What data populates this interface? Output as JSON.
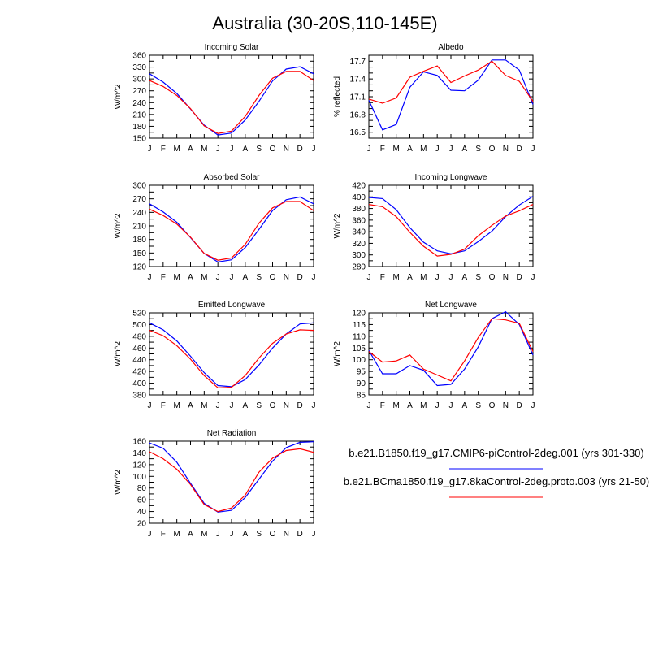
{
  "figure": {
    "title": "Australia (30-20S,110-145E)"
  },
  "legend": [
    {
      "label": "b.e21.B1850.f19_g17.CMIP6-piControl-2deg.001 (yrs 301-330)",
      "color": "#0000ff"
    },
    {
      "label": "b.e21.BCma1850.f19_g17.8kaControl-2deg.proto.003 (yrs 21-50)",
      "color": "#ff0000"
    }
  ],
  "chart_data": [
    {
      "type": "line",
      "title": "Incoming Solar",
      "ylabel": "W/m^2",
      "categories": [
        "J",
        "F",
        "M",
        "A",
        "M",
        "J",
        "J",
        "A",
        "S",
        "O",
        "N",
        "D",
        "J"
      ],
      "ylim": [
        150,
        360
      ],
      "yticks": [
        150,
        165,
        180,
        195,
        210,
        225,
        240,
        255,
        270,
        285,
        300,
        315,
        330,
        345,
        360
      ],
      "ytick_labels": [
        "150",
        "",
        "180",
        "",
        "210",
        "",
        "240",
        "",
        "270",
        "",
        "300",
        "",
        "330",
        "",
        "360"
      ],
      "series": [
        {
          "color": "#0000ff",
          "values": [
            313,
            292,
            263,
            224,
            183,
            158,
            163,
            196,
            243,
            295,
            325,
            331,
            313
          ]
        },
        {
          "color": "#ff0000",
          "values": [
            296,
            281,
            258,
            225,
            181,
            162,
            168,
            205,
            258,
            302,
            319,
            319,
            296
          ]
        }
      ]
    },
    {
      "type": "line",
      "title": "Albedo",
      "ylabel": "% reflected",
      "categories": [
        "J",
        "F",
        "M",
        "A",
        "M",
        "J",
        "J",
        "A",
        "S",
        "O",
        "N",
        "D",
        "J"
      ],
      "ylim": [
        16.4,
        17.8
      ],
      "yticks": [
        16.5,
        16.6,
        16.7,
        16.8,
        16.9,
        17.0,
        17.1,
        17.2,
        17.3,
        17.4,
        17.5,
        17.6,
        17.7
      ],
      "ytick_labels": [
        "16.5",
        "",
        "",
        "16.8",
        "",
        "",
        "17.1",
        "",
        "",
        "17.4",
        "",
        "",
        "17.7"
      ],
      "series": [
        {
          "color": "#0000ff",
          "values": [
            17.04,
            16.54,
            16.63,
            17.26,
            17.52,
            17.46,
            17.21,
            17.2,
            17.38,
            17.72,
            17.72,
            17.55,
            16.97
          ]
        },
        {
          "color": "#ff0000",
          "values": [
            17.06,
            16.99,
            17.08,
            17.43,
            17.53,
            17.62,
            17.34,
            17.45,
            17.55,
            17.7,
            17.46,
            17.36,
            17.02
          ]
        }
      ]
    },
    {
      "type": "line",
      "title": "Absorbed Solar",
      "ylabel": "W/m^2",
      "categories": [
        "J",
        "F",
        "M",
        "A",
        "M",
        "J",
        "J",
        "A",
        "S",
        "O",
        "N",
        "D",
        "J"
      ],
      "ylim": [
        120,
        300
      ],
      "yticks": [
        120,
        135,
        150,
        165,
        180,
        195,
        210,
        225,
        240,
        255,
        270,
        285,
        300
      ],
      "ytick_labels": [
        "120",
        "",
        "150",
        "",
        "180",
        "",
        "210",
        "",
        "240",
        "",
        "270",
        "",
        "300"
      ],
      "series": [
        {
          "color": "#0000ff",
          "values": [
            259,
            241,
            218,
            184,
            149,
            130,
            135,
            162,
            202,
            244,
            268,
            274,
            259
          ]
        },
        {
          "color": "#ff0000",
          "values": [
            247,
            233,
            214,
            185,
            149,
            134,
            139,
            169,
            216,
            250,
            264,
            264,
            244
          ]
        }
      ]
    },
    {
      "type": "line",
      "title": "Incoming Longwave",
      "ylabel": "W/m^2",
      "categories": [
        "J",
        "F",
        "M",
        "A",
        "M",
        "J",
        "J",
        "A",
        "S",
        "O",
        "N",
        "D",
        "J"
      ],
      "ylim": [
        280,
        420
      ],
      "yticks": [
        280,
        290,
        300,
        310,
        320,
        330,
        340,
        350,
        360,
        370,
        380,
        390,
        400,
        410,
        420
      ],
      "ytick_labels": [
        "280",
        "",
        "300",
        "",
        "320",
        "",
        "340",
        "",
        "360",
        "",
        "380",
        "",
        "400",
        "",
        "420"
      ],
      "series": [
        {
          "color": "#0000ff",
          "values": [
            399,
            397,
            378,
            347,
            322,
            307,
            302,
            307,
            323,
            341,
            366,
            386,
            401
          ]
        },
        {
          "color": "#ff0000",
          "values": [
            387,
            383,
            366,
            339,
            315,
            298,
            301,
            310,
            333,
            351,
            367,
            376,
            387
          ]
        }
      ]
    },
    {
      "type": "line",
      "title": "Emitted Longwave",
      "ylabel": "W/m^2",
      "categories": [
        "J",
        "F",
        "M",
        "A",
        "M",
        "J",
        "J",
        "A",
        "S",
        "O",
        "N",
        "D",
        "J"
      ],
      "ylim": [
        380,
        520
      ],
      "yticks": [
        380,
        390,
        400,
        410,
        420,
        430,
        440,
        450,
        460,
        470,
        480,
        490,
        500,
        510,
        520
      ],
      "ytick_labels": [
        "380",
        "",
        "400",
        "",
        "420",
        "",
        "440",
        "",
        "460",
        "",
        "480",
        "",
        "500",
        "",
        "520"
      ],
      "series": [
        {
          "color": "#0000ff",
          "values": [
            503,
            491,
            472,
            446,
            418,
            396,
            394,
            406,
            431,
            460,
            484,
            501,
            503
          ]
        },
        {
          "color": "#ff0000",
          "values": [
            490,
            481,
            464,
            441,
            413,
            392,
            393,
            413,
            443,
            468,
            484,
            491,
            490
          ]
        }
      ]
    },
    {
      "type": "line",
      "title": "Net Longwave",
      "ylabel": "W/m^2",
      "categories": [
        "J",
        "F",
        "M",
        "A",
        "M",
        "J",
        "J",
        "A",
        "S",
        "O",
        "N",
        "D",
        "J"
      ],
      "ylim": [
        85,
        120
      ],
      "yticks": [
        85,
        87.5,
        90,
        92.5,
        95,
        97.5,
        100,
        102.5,
        105,
        107.5,
        110,
        112.5,
        115,
        117.5,
        120
      ],
      "ytick_labels": [
        "85",
        "",
        "90",
        "",
        "95",
        "",
        "100",
        "",
        "105",
        "",
        "110",
        "",
        "115",
        "",
        "120"
      ],
      "series": [
        {
          "color": "#0000ff",
          "values": [
            104,
            94,
            94,
            97.5,
            95.5,
            89,
            89.5,
            96,
            105.5,
            117.5,
            120.5,
            115,
            102
          ]
        },
        {
          "color": "#ff0000",
          "values": [
            103.5,
            99,
            99.5,
            102,
            96,
            93.5,
            91,
            99.5,
            109.5,
            117.5,
            117,
            115.5,
            103.5
          ]
        }
      ]
    },
    {
      "type": "line",
      "title": "Net Radiation",
      "ylabel": "W/m^2",
      "categories": [
        "J",
        "F",
        "M",
        "A",
        "M",
        "J",
        "J",
        "A",
        "S",
        "O",
        "N",
        "D",
        "J"
      ],
      "ylim": [
        20,
        160
      ],
      "yticks": [
        20,
        30,
        40,
        50,
        60,
        70,
        80,
        90,
        100,
        110,
        120,
        130,
        140,
        150,
        160
      ],
      "ytick_labels": [
        "20",
        "",
        "40",
        "",
        "60",
        "",
        "80",
        "",
        "100",
        "",
        "120",
        "",
        "140",
        "",
        "160"
      ],
      "series": [
        {
          "color": "#0000ff",
          "values": [
            157,
            148,
            124,
            88,
            54,
            39,
            42,
            64,
            95,
            126,
            149,
            158,
            159
          ]
        },
        {
          "color": "#ff0000",
          "values": [
            142,
            130,
            112,
            86,
            52,
            40,
            46,
            68,
            107,
            131,
            144,
            147,
            141
          ]
        }
      ]
    }
  ]
}
